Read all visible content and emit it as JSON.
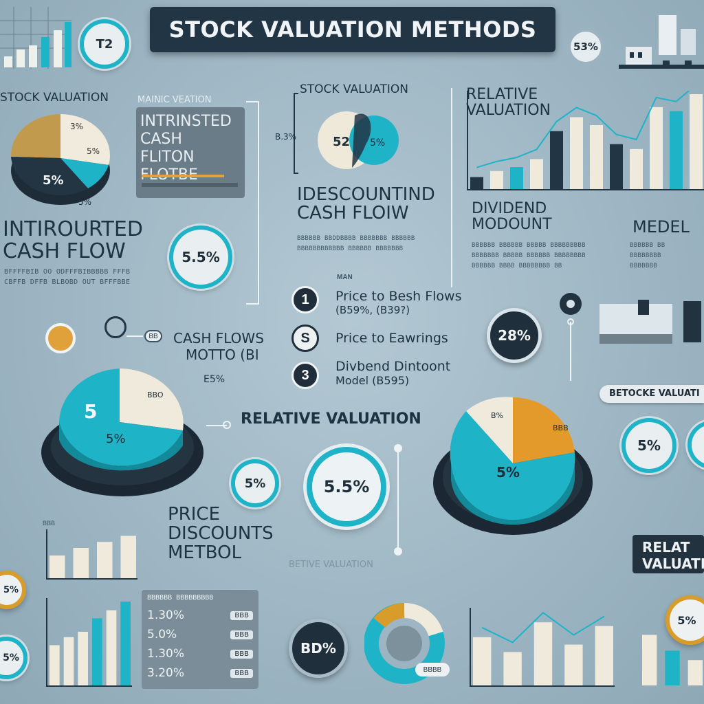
{
  "title": "STOCK VALUATION METHODS",
  "colors": {
    "teal": "#1fb3c7",
    "navy": "#223544",
    "cream": "#f1ede0",
    "gold": "#d89c2b",
    "tan": "#c69b4d"
  },
  "top_left": {
    "clock_label": "T2"
  },
  "top_right": {
    "badge": "53%"
  },
  "left_panel": {
    "heading": "STOCK VALUATION",
    "pie_labels": [
      "3%",
      "5%",
      "5%",
      "5%"
    ],
    "big_heading_line1": "INTIROURTED",
    "big_heading_line2": "CASH FLOW",
    "fine_text": [
      "BFFFFBIB OO ODFFFBIBBBBB FFFB",
      "CBFFB DFFB BLBOBD OUT BFFFBBE"
    ]
  },
  "intrinsic_panel": {
    "caption": "MAINIC VEATION",
    "line1": "INTRINSTED",
    "line2": "CASH FLITON",
    "line3": "FLOTBE"
  },
  "ring_55": "5.5%",
  "center_top": {
    "caption": "STOCK VALUATION",
    "side_value": "B.3%",
    "pie_value_a": "52",
    "pie_value_b": "5%",
    "heading_line1": "IDESCOUNTIND",
    "heading_line2": "CASH FLOIW",
    "fine_text": [
      "BBBBBB BBDDBBBB BBBBBBB BBBBBB",
      "BBBBBBBBBBBB BBBBBB BBBBBBB"
    ]
  },
  "relative_top": {
    "heading_line1": "RELATIVE",
    "heading_line2": "VALUATION",
    "bar_values": [
      12,
      18,
      22,
      30,
      58,
      72,
      64,
      45,
      40,
      82,
      78,
      95
    ]
  },
  "dividend": {
    "heading_line1": "DIVIDEND",
    "heading_line2": "MODOUNT",
    "fine_text": [
      "BBBBBB BBBBBB BBBBB BBBBBBBBB",
      "BBBBBBB BBBBB BBBBBB BBBBBBBB",
      "BBBBBB BBBB BBBBBBBB BB"
    ]
  },
  "model_right": {
    "heading": "MEDEL",
    "fine_text": [
      "BBBBBB BB",
      "BBBBBBBB",
      "BBBBBBB"
    ]
  },
  "numbered_list": {
    "caption": "MAN",
    "items": [
      {
        "num": "1",
        "line1": "Price to Besh Flows",
        "line2": "(B59%,  (B39?)"
      },
      {
        "num": "S",
        "line1": "Price to Eawrings",
        "line2": ""
      },
      {
        "num": "3",
        "line1": "Divbend Dintoont",
        "line2": "Model  (B595)"
      }
    ]
  },
  "ring_28": "28%",
  "cash_flows_mid": {
    "line1": "CASH FLOWS",
    "line2": "MOTTO (BI",
    "pct": "E5%",
    "badge": "BB"
  },
  "big_pie_left": {
    "label_top": "5",
    "label_bottom": "5%",
    "label_cream": "BBO"
  },
  "relative_valuation_mid": "RELATIVE VALUATION",
  "ring_5_left": "5%",
  "ring_55_center": "5.5%",
  "price_discounts": {
    "line1": "PRICE",
    "line2": "DISCOUNTS",
    "line3": "METBOL"
  },
  "faint_label": "BETIVE VALUATION",
  "big_pie_right": {
    "label_main": "5%",
    "label_small": "B%",
    "label_gold": "BBB"
  },
  "right_tag": "BETOCKE VALUATI",
  "ring_5_right": "5%",
  "relat_tag_line1": "RELAT",
  "relat_tag_line2": "VALUATI",
  "small_bar_label": "BBB",
  "small_bars": [
    30,
    40,
    48,
    56
  ],
  "bottom_left_rings": [
    "5%",
    "5%"
  ],
  "bottom_bars": [
    60,
    72,
    80,
    100,
    112,
    125
  ],
  "table": {
    "header": "BBBBBB BBBBBBBBB",
    "rows": [
      {
        "pct": "1.30%",
        "val": "BBB"
      },
      {
        "pct": "5.0%",
        "val": "BBB"
      },
      {
        "pct": "1.30%",
        "val": "BBB"
      },
      {
        "pct": "3.20%",
        "val": "BBB"
      }
    ]
  },
  "ring_bd": "BD%",
  "donut_label": "BBBB",
  "bottom_center_bars": [
    65,
    45,
    85,
    55,
    80
  ],
  "bottom_right_ring": "5%",
  "bottom_right_bars": [
    80,
    55,
    40
  ]
}
